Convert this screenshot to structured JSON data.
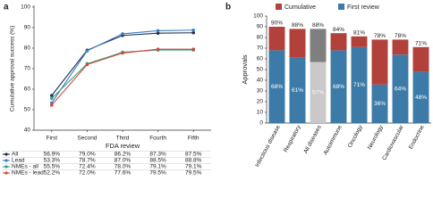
{
  "chart_data": [
    {
      "type": "line",
      "panel": "a",
      "y_label": "Cumulative approval success (%)",
      "x_label": "FDA review",
      "categories": [
        "First",
        "Second",
        "Third",
        "Fourth",
        "Fifth"
      ],
      "ylim": [
        40,
        100
      ],
      "yticks": [
        40,
        50,
        60,
        70,
        80,
        90,
        100
      ],
      "series": [
        {
          "name": "All",
          "color": "#1f2d4e",
          "values": [
            56.9,
            79.0,
            86.2,
            87.3,
            87.5
          ],
          "value_labels": [
            "56.9%",
            "79.0%",
            "86.2%",
            "87.3%",
            "87.5%"
          ]
        },
        {
          "name": "Lead",
          "color": "#3b7fc2",
          "values": [
            53.3,
            78.7,
            87.0,
            88.5,
            88.8
          ],
          "value_labels": [
            "53.3%",
            "78.7%",
            "87.0%",
            "88.5%",
            "88.8%"
          ]
        },
        {
          "name": "NMEs - all",
          "color": "#35a57a",
          "values": [
            55.5,
            72.4,
            78.0,
            79.1,
            79.1
          ],
          "value_labels": [
            "55.5%",
            "72.4%",
            "78.0%",
            "79.1%",
            "79.1%"
          ]
        },
        {
          "name": "NMEs - lead",
          "color": "#d8443b",
          "values": [
            52.2,
            72.0,
            77.6,
            79.5,
            79.5
          ],
          "value_labels": [
            "52.2%",
            "72.0%",
            "77.6%",
            "79.5%",
            "79.5%"
          ]
        }
      ]
    },
    {
      "type": "stacked_bar",
      "panel": "b",
      "y_label": "Approvals",
      "categories": [
        "Infectious disease",
        "Respiratory",
        "All diseases",
        "Autoimmune",
        "Oncology",
        "Neurology",
        "Cardiovascular",
        "Endocrine"
      ],
      "ylim": [
        0,
        100
      ],
      "yticks": [
        0,
        10,
        20,
        30,
        40,
        50,
        60,
        70,
        80,
        90,
        100
      ],
      "series": [
        {
          "name": "First review",
          "color": "#3c7ba8",
          "highlight_color": "#c9c9c9",
          "values": [
            68,
            61,
            57,
            68,
            71,
            36,
            64,
            48
          ],
          "value_labels": [
            "68%",
            "61%",
            "57%",
            "68%",
            "71%",
            "36%",
            "64%",
            "48%"
          ]
        },
        {
          "name": "Cumulative",
          "color": "#b3413b",
          "highlight_color": "#7f7f7f",
          "values": [
            22,
            27,
            31,
            16,
            10,
            42,
            14,
            23
          ]
        }
      ],
      "highlight_category": 2,
      "totals": [
        90,
        88,
        88,
        84,
        81,
        78,
        78,
        71
      ],
      "total_labels": [
        "90%",
        "88%",
        "88%",
        "84%",
        "81%",
        "78%",
        "78%",
        "71%"
      ]
    }
  ]
}
